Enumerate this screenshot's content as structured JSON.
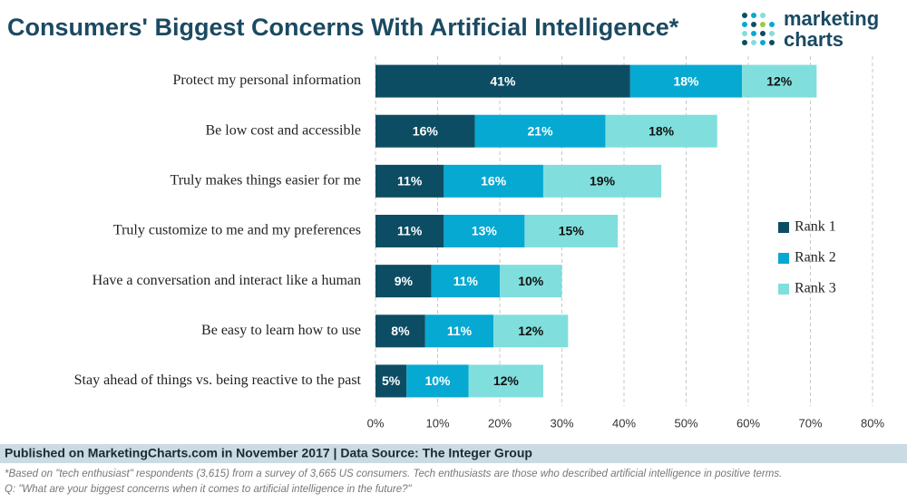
{
  "chart_data": {
    "type": "bar",
    "orientation": "horizontal",
    "stacked": true,
    "title": "Consumers' Biggest Concerns With Artificial Intelligence*",
    "logo": [
      "marketing",
      "charts"
    ],
    "categories": [
      "Protect my personal information",
      "Be low cost and accessible",
      "Truly makes things easier for me",
      "Truly customize to me and my preferences",
      "Have a conversation and interact like a human",
      "Be easy to learn how to use",
      "Stay ahead of things vs. being reactive to the past"
    ],
    "series": [
      {
        "name": "Rank 1",
        "color": "#0d4d63",
        "values": [
          41,
          16,
          11,
          11,
          9,
          8,
          5
        ],
        "value_labels": [
          "41%",
          "16%",
          "11%",
          "11%",
          "9%",
          "8%",
          "5%"
        ]
      },
      {
        "name": "Rank 2",
        "color": "#06a9d2",
        "values": [
          18,
          21,
          16,
          13,
          11,
          11,
          10
        ],
        "value_labels": [
          "18%",
          "21%",
          "16%",
          "13%",
          "11%",
          "11%",
          "10%"
        ]
      },
      {
        "name": "Rank 3",
        "color": "#80dfdd",
        "values": [
          12,
          18,
          19,
          15,
          10,
          12,
          12
        ],
        "value_labels": [
          "12%",
          "18%",
          "19%",
          "15%",
          "10%",
          "12%",
          "12%"
        ]
      }
    ],
    "xlim": [
      0,
      80
    ],
    "xticks": [
      {
        "value": 0,
        "label": "0%"
      },
      {
        "value": 10,
        "label": "10%"
      },
      {
        "value": 20,
        "label": "20%"
      },
      {
        "value": 30,
        "label": "30%"
      },
      {
        "value": 40,
        "label": "40%"
      },
      {
        "value": 50,
        "label": "50%"
      },
      {
        "value": 60,
        "label": "60%"
      },
      {
        "value": 70,
        "label": "70%"
      },
      {
        "value": 80,
        "label": "80%"
      }
    ],
    "grid": true,
    "legend_position": "right",
    "source": "Published on MarketingCharts.com in November 2017 | Data Source: The Integer Group",
    "notes": [
      "*Based on \"tech enthusiast\" respondents (3,615) from a survey of 3,665 US consumers. Tech enthusiasts are those who described artificial intelligence in positive terms.",
      "Q: \"What are your biggest concerns when it comes to artificial intelligence in the future?\""
    ]
  }
}
